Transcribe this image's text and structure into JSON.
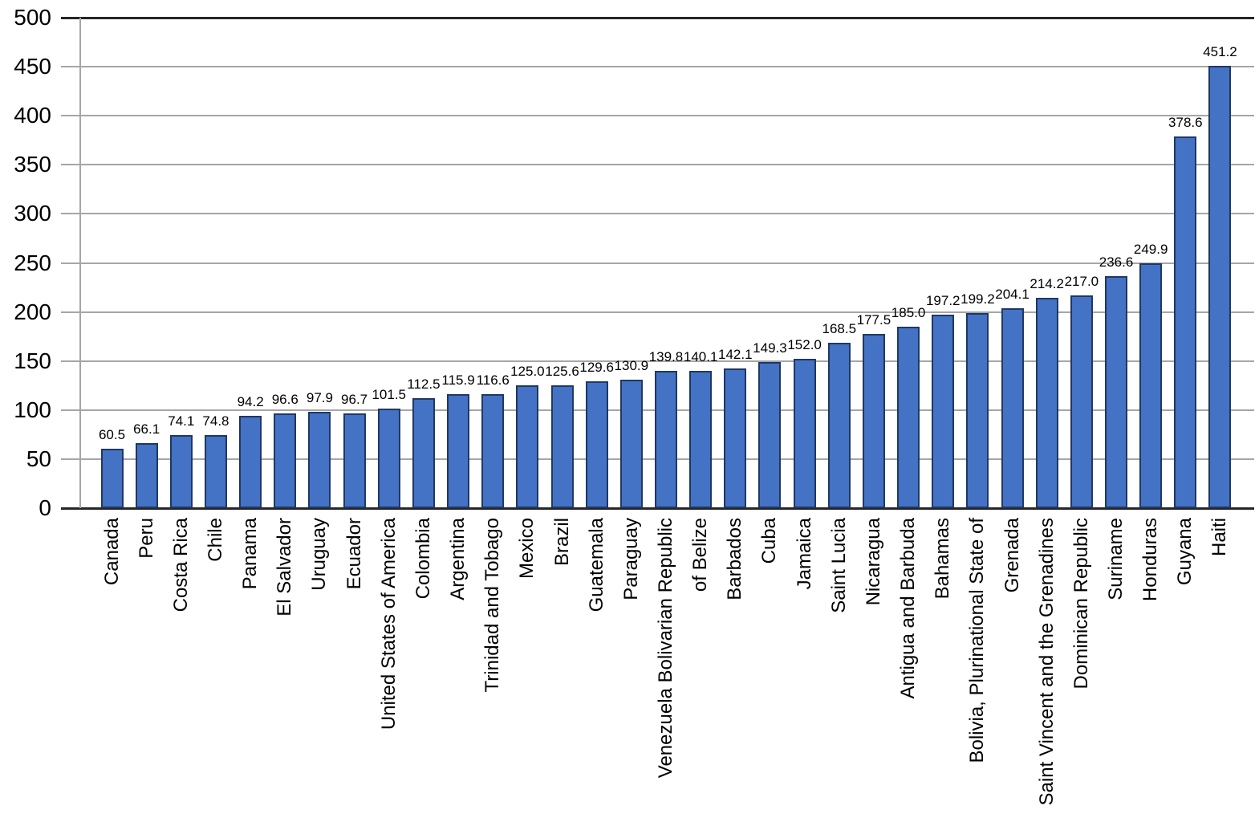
{
  "chart_data": {
    "type": "bar",
    "title": "",
    "xlabel": "",
    "ylabel": "",
    "ylim": [
      0,
      500
    ],
    "ytick_step": 50,
    "yticks": [
      "0",
      "50",
      "100",
      "150",
      "200",
      "250",
      "300",
      "350",
      "400",
      "450",
      "500"
    ],
    "grid": "horizontal",
    "legend": "none",
    "categories": [
      "Canada",
      "Peru",
      "Costa Rica",
      "Chile",
      "Panama",
      "El Salvador",
      "Uruguay",
      "Ecuador",
      "United States of America",
      "Colombia",
      "Argentina",
      "Trinidad and Tobago",
      "Mexico",
      "Brazil",
      "Guatemala",
      "Paraguay",
      "Venezuela Bolivarian Republic",
      "of Belize",
      "Barbados",
      "Cuba",
      "Jamaica",
      "Saint Lucia",
      "Nicaragua",
      "Antigua and Barbuda",
      "Bahamas",
      "Bolivia, Plurinational State of",
      "Grenada",
      "Saint Vincent and the Grenadines",
      "Dominican Republic",
      "Suriname",
      "Honduras",
      "Guyana",
      "Haiti"
    ],
    "values": [
      60.5,
      66.1,
      74.1,
      74.8,
      94.2,
      96.6,
      97.9,
      96.7,
      101.5,
      112.5,
      115.9,
      116.6,
      125.0,
      125.6,
      129.6,
      130.9,
      139.8,
      140.1,
      142.1,
      149.3,
      152.0,
      168.5,
      177.5,
      185.0,
      197.2,
      199.2,
      204.1,
      214.2,
      217.0,
      236.6,
      249.9,
      378.6,
      451.2
    ],
    "value_labels": [
      "60.5",
      "66.1",
      "74.1",
      "74.8",
      "94.2",
      "96.6",
      "97.9",
      "96.7",
      "101.5",
      "112.5",
      "115.9",
      "116.6",
      "125.0",
      "125.6",
      "129.6",
      "130.9",
      "139.8",
      "140.1",
      "142.1",
      "149.3",
      "152.0",
      "168.5",
      "177.5",
      "185.0",
      "197.2",
      "199.2",
      "204.1",
      "214.2",
      "217.0",
      "236.6",
      "249.9",
      "378.6",
      "451.2"
    ],
    "bar_fill_color": "#4472C4",
    "bar_border_color": "#1F3864",
    "gridline_color": "#A6A6A6",
    "axis_line_color": "#262626",
    "text_color": "#000000"
  }
}
